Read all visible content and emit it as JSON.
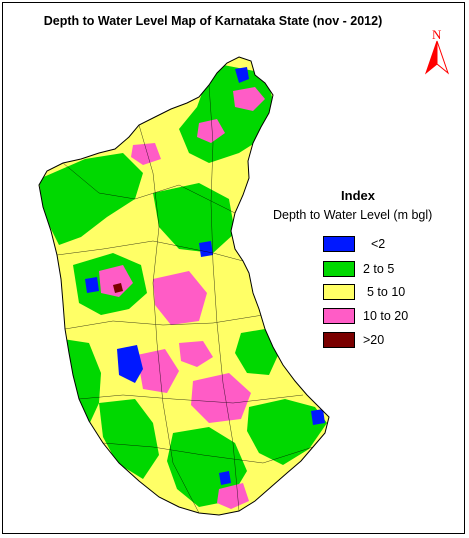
{
  "title": "Depth to Water Level Map of Karnataka State (nov - 2012)",
  "north_label": "N",
  "legend": {
    "title": "Index",
    "subtitle": "Depth to Water Level (m bgl)",
    "items": [
      {
        "label": "<2",
        "color": "#0018ff"
      },
      {
        "label": "2 to 5",
        "color": "#00d800"
      },
      {
        "label": "5 to 10",
        "color": "#ffff66"
      },
      {
        "label": "10 to 20",
        "color": "#ff5cc6"
      },
      {
        "label": ">20",
        "color": "#7a0000"
      }
    ]
  },
  "colors": {
    "lt2": "#0018ff",
    "c2to5": "#00d800",
    "c5to10": "#ffff66",
    "c10to20": "#ff5cc6",
    "gt20": "#7a0000",
    "boundary": "#000000",
    "north_arrow": "#ff0000"
  }
}
